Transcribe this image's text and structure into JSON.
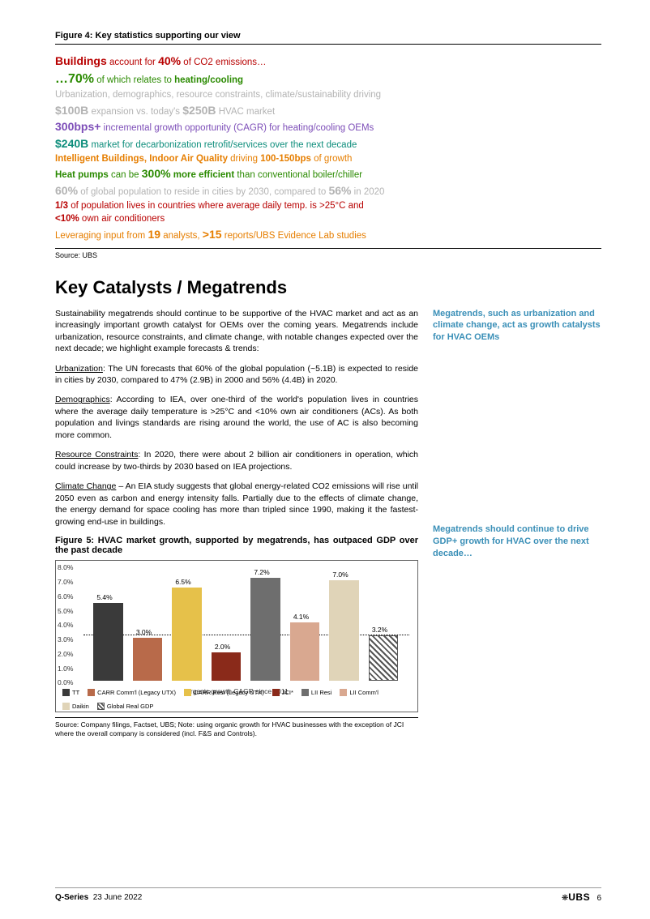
{
  "figure4": {
    "title": "Figure 4: Key statistics supporting our view",
    "lines": {
      "l1a": "Buildings",
      "l1b": " account for ",
      "l1c": "40%",
      "l1d": " of CO2 emissions…",
      "l2a": "…",
      "l2b": "70%",
      "l2c": " of which relates to ",
      "l2d": "heating/cooling",
      "l3": "Urbanization, demographics, resource constraints, climate/sustainability driving",
      "l4a": "$100B",
      "l4b": " expansion vs. today's ",
      "l4c": "$250B",
      "l4d": " HVAC market",
      "l5a": "300bps+",
      "l5b": " incremental growth opportunity (CAGR) for heating/cooling OEMs",
      "l6a": "$240B",
      "l6b": " market for decarbonization retrofit/services over the next decade",
      "l7a": "Intelligent Buildings, Indoor Air Quality",
      "l7b": " driving ",
      "l7c": "100-150bps",
      "l7d": " of growth",
      "l8a": "Heat pumps",
      "l8b": " can be ",
      "l8c": "300%",
      "l8d": " more efficient",
      "l8e": " than conventional boiler/chiller",
      "l9a": "60%",
      "l9b": " of global population to reside in cities by 2030, compared to ",
      "l9c": "56%",
      "l9d": " in 2020",
      "l10a": "1/3",
      "l10b": " of population lives in countries where average daily temp. is >25°C and",
      "l11a": "<10%",
      "l11b": " own air conditioners",
      "l12a": "Leveraging input from ",
      "l12b": "19",
      "l12c": " analysts, ",
      "l12d": ">15",
      "l12e": " reports/UBS Evidence Lab studies"
    },
    "source": "Source: UBS"
  },
  "sectionTitle": "Key Catalysts / Megatrends",
  "body": {
    "p1": "Sustainability megatrends should continue to be supportive of the HVAC market and act as an increasingly important growth catalyst for OEMs over the coming years. Megatrends include urbanization, resource constraints, and climate change, with notable changes expected over the next decade; we highlight example forecasts & trends:",
    "p2h": "Urbanization",
    "p2": ": The UN forecasts that 60% of the global population (~5.1B) is expected to reside in cities by 2030, compared to 47% (2.9B) in 2000 and 56% (4.4B) in 2020.",
    "p3h": "Demographics",
    "p3": ": According to IEA, over one-third of the world's population lives in countries where the average daily temperature is >25°C and <10% own air conditioners (ACs). As both population and livings standards are rising around the world, the use of AC is also becoming more common.",
    "p4h": "Resource Constraints",
    "p4": ": In 2020, there were about 2 billion air conditioners in operation, which could increase by two-thirds by 2030 based on IEA projections.",
    "p5h": "Climate Change",
    "p5": " – An EIA study suggests that global energy-related CO2 emissions will rise until 2050 even as carbon and energy intensity falls. Partially due to the effects of climate change, the energy demand for space cooling has more than tripled since 1990, making it the fastest-growing end-use in buildings."
  },
  "sidebar": {
    "note1": "Megatrends, such as urbanization and climate change, act as growth catalysts for HVAC OEMs",
    "note2": "Megatrends should continue to drive GDP+ growth for HVAC over the next decade…"
  },
  "figure5": {
    "title": "Figure 5: HVAC market growth, supported by megatrends, has outpaced GDP over the past decade",
    "chart": {
      "type": "bar",
      "xlabel": "Organic growth CAGR since 2011",
      "ylim": [
        0,
        8
      ],
      "ytick_step": 1,
      "yticks": [
        "0.0%",
        "1.0%",
        "2.0%",
        "3.0%",
        "4.0%",
        "5.0%",
        "6.0%",
        "7.0%",
        "8.0%"
      ],
      "ref_line": 3.2,
      "series": [
        {
          "label": "TT",
          "value": 5.4,
          "display": "5.4%",
          "color": "#3a3a3a",
          "pattern": "solid"
        },
        {
          "label": "CARR Comm'l (Legacy UTX)",
          "value": 3.0,
          "display": "3.0%",
          "color": "#b86a4a",
          "pattern": "solid"
        },
        {
          "label": "CARR Resi (Legacy UTX)",
          "value": 6.5,
          "display": "6.5%",
          "color": "#e6c14a",
          "pattern": "solid"
        },
        {
          "label": "JCI*",
          "value": 2.0,
          "display": "2.0%",
          "color": "#8a2a1a",
          "pattern": "solid"
        },
        {
          "label": "LII Resi",
          "value": 7.2,
          "display": "7.2%",
          "color": "#6e6e6e",
          "pattern": "solid"
        },
        {
          "label": "LII Comm'l",
          "value": 4.1,
          "display": "4.1%",
          "color": "#d9a890",
          "pattern": "solid"
        },
        {
          "label": "Daikin",
          "value": 7.0,
          "display": "7.0%",
          "color": "#e0d4b8",
          "pattern": "solid"
        },
        {
          "label": "Global Real GDP",
          "value": 3.2,
          "display": "3.2%",
          "color": "#999",
          "pattern": "hatch"
        }
      ]
    },
    "source": "Source: Company filings, Factset, UBS; Note: using organic growth for HVAC businesses with the exception of JCI where the overall company is considered (incl. F&S and Controls)."
  },
  "footer": {
    "series": "Q-Series",
    "date": "23 June 2022",
    "logo": "UBS",
    "page": "6"
  },
  "colors": {
    "red": "#b80000",
    "green": "#2a8a00",
    "grey": "#b3b3b3",
    "purple": "#7d4eb8",
    "teal": "#0c8d7b",
    "orange": "#e67e00",
    "sidebar_blue": "#3a8fb7"
  }
}
